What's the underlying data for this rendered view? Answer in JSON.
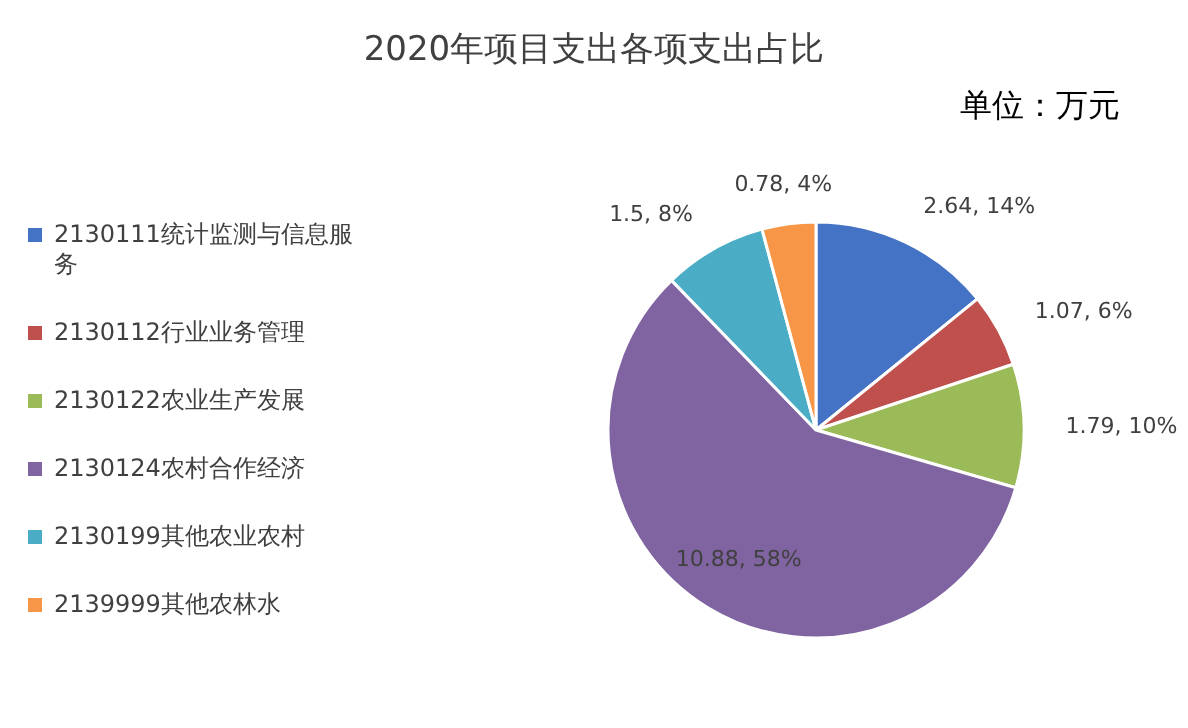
{
  "chart_data": {
    "type": "pie",
    "title": "2020年项目支出各项支出占比",
    "annotations": [
      "单位：万元"
    ],
    "categories": [
      "2130111统计监测与信息服务",
      "2130112行业业务管理",
      "2130122农业生产发展",
      "2130124农村合作经济",
      "2130199其他农业农村",
      "2139999其他农林水"
    ],
    "values": [
      2.64,
      1.07,
      1.79,
      10.88,
      1.5,
      0.78
    ],
    "colors": [
      "#4472c4",
      "#c0504d",
      "#9bbb59",
      "#8064a2",
      "#4bacc6",
      "#f79646"
    ],
    "value_labels": [
      "2.64, 14%",
      "1.07, 6%",
      "1.79, 10%",
      "10.88, 58%",
      "1.5, 8%",
      "0.78, 4%"
    ],
    "legend": "left"
  }
}
